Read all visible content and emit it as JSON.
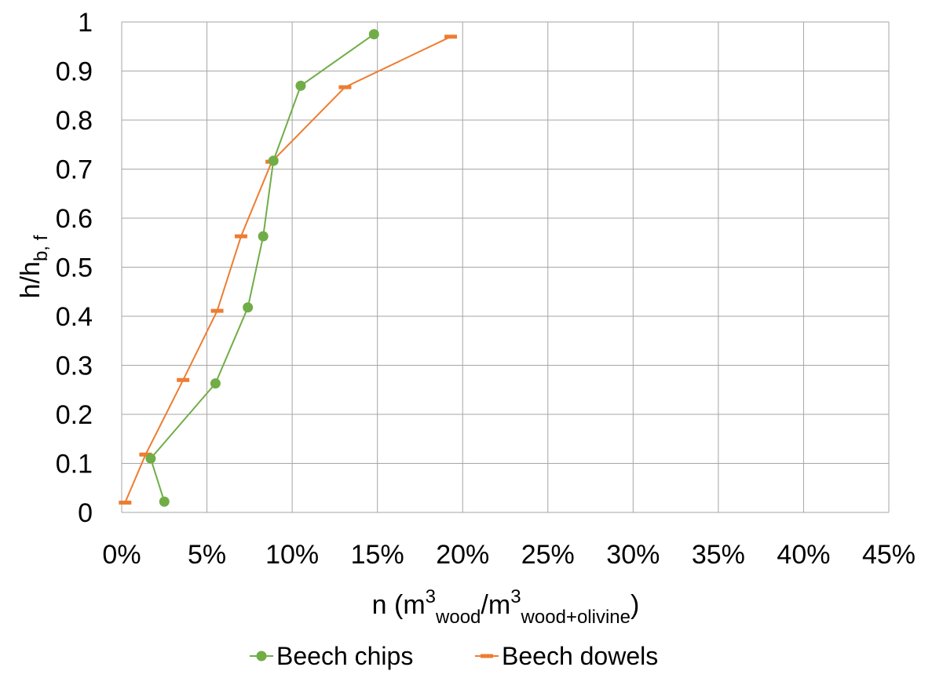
{
  "chart_data": {
    "type": "scatter",
    "xlabel": {
      "base": "n (m",
      "sup1": "3",
      "sub1": "wood",
      "mid": "/m",
      "sup2": "3",
      "sub2": "wood+olivine",
      "end": ")"
    },
    "ylabel": {
      "base": "h/h",
      "sub": "b, f"
    },
    "xlim": [
      0,
      0.45
    ],
    "ylim": [
      0,
      1
    ],
    "x_ticks": [
      0,
      0.05,
      0.1,
      0.15,
      0.2,
      0.25,
      0.3,
      0.35,
      0.4,
      0.45
    ],
    "x_tick_labels": [
      "0%",
      "5%",
      "10%",
      "15%",
      "20%",
      "25%",
      "30%",
      "35%",
      "40%",
      "45%"
    ],
    "y_ticks": [
      0,
      0.1,
      0.2,
      0.3,
      0.4,
      0.5,
      0.6,
      0.7,
      0.8,
      0.9,
      1
    ],
    "y_tick_labels": [
      "0",
      "0.1",
      "0.2",
      "0.3",
      "0.4",
      "0.5",
      "0.6",
      "0.7",
      "0.8",
      "0.9",
      "1"
    ],
    "grid": true,
    "legend_position": "bottom",
    "series": [
      {
        "name": "Beech chips",
        "color": "#70ad47",
        "marker": "circle",
        "x": [
          0.025,
          0.017,
          0.055,
          0.074,
          0.083,
          0.089,
          0.105,
          0.148
        ],
        "y": [
          0.022,
          0.11,
          0.263,
          0.418,
          0.563,
          0.717,
          0.87,
          0.975
        ]
      },
      {
        "name": "Beech dowels",
        "color": "#ed7d31",
        "marker": "dash",
        "x": [
          0.002,
          0.014,
          0.036,
          0.056,
          0.07,
          0.088,
          0.131,
          0.193
        ],
        "y": [
          0.02,
          0.118,
          0.27,
          0.411,
          0.563,
          0.715,
          0.867,
          0.97
        ]
      }
    ]
  }
}
